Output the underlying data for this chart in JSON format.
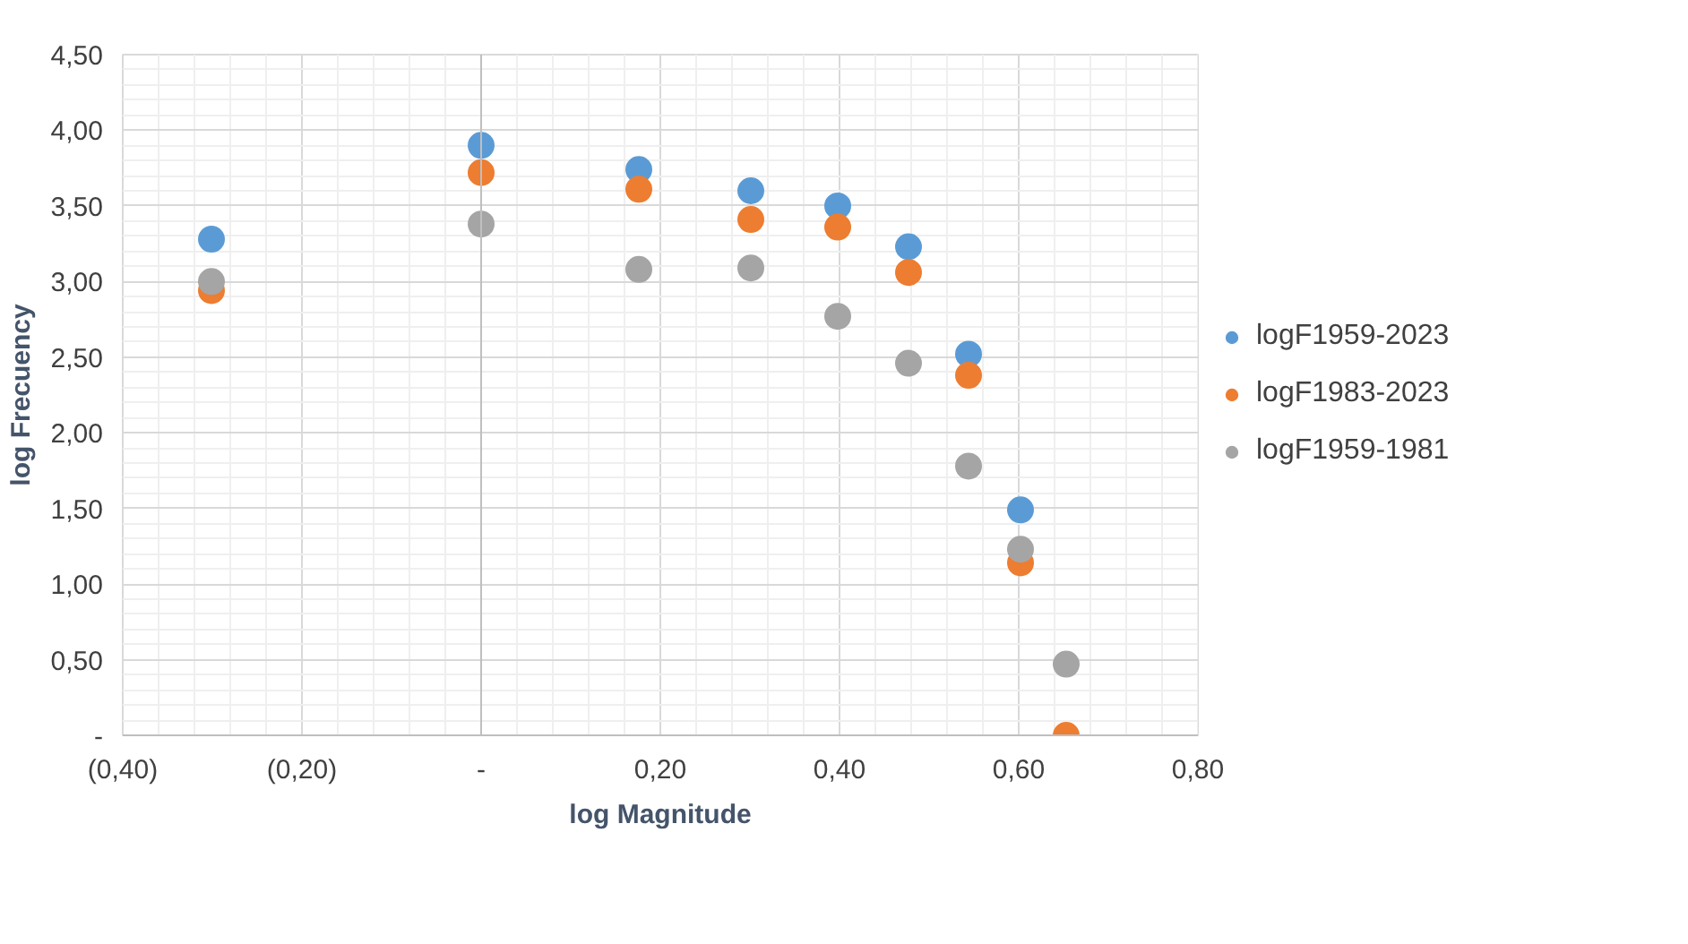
{
  "chart_data": {
    "type": "scatter",
    "xlabel": "log Magnitude",
    "ylabel": "log Frecuency",
    "x": [
      -0.301,
      0,
      0.176,
      0.301,
      0.398,
      0.477,
      0.544,
      0.602,
      0.653
    ],
    "series": [
      {
        "name": "logF1959-2023",
        "color": "#5b9bd5",
        "values": [
          3.28,
          3.9,
          3.74,
          3.6,
          3.5,
          3.23,
          2.52,
          1.49,
          null
        ]
      },
      {
        "name": "logF1983-2023",
        "color": "#ed7d31",
        "values": [
          2.94,
          3.72,
          3.61,
          3.41,
          3.36,
          3.06,
          2.38,
          1.14,
          0
        ]
      },
      {
        "name": "logF1959-1981",
        "color": "#a5a5a5",
        "values": [
          3.0,
          3.38,
          3.08,
          3.09,
          2.77,
          2.46,
          1.78,
          1.23,
          0.47
        ]
      }
    ],
    "xlim": [
      -0.4,
      0.8
    ],
    "ylim": [
      0,
      4.5
    ],
    "xticks": [
      {
        "value": -0.4,
        "label": "(0,40)"
      },
      {
        "value": -0.2,
        "label": "(0,20)"
      },
      {
        "value": 0,
        "label": "-"
      },
      {
        "value": 0.2,
        "label": "0,20"
      },
      {
        "value": 0.4,
        "label": "0,40"
      },
      {
        "value": 0.6,
        "label": "0,60"
      },
      {
        "value": 0.8,
        "label": "0,80"
      }
    ],
    "yticks": [
      {
        "value": 0,
        "label": "-"
      },
      {
        "value": 0.5,
        "label": "0,50"
      },
      {
        "value": 1.0,
        "label": "1,00"
      },
      {
        "value": 1.5,
        "label": "1,50"
      },
      {
        "value": 2.0,
        "label": "2,00"
      },
      {
        "value": 2.5,
        "label": "2,50"
      },
      {
        "value": 3.0,
        "label": "3,00"
      },
      {
        "value": 3.5,
        "label": "3,50"
      },
      {
        "value": 4.0,
        "label": "4,00"
      },
      {
        "value": 4.5,
        "label": "4,50"
      }
    ],
    "grid": true,
    "legend": "right",
    "marker": "circle"
  }
}
